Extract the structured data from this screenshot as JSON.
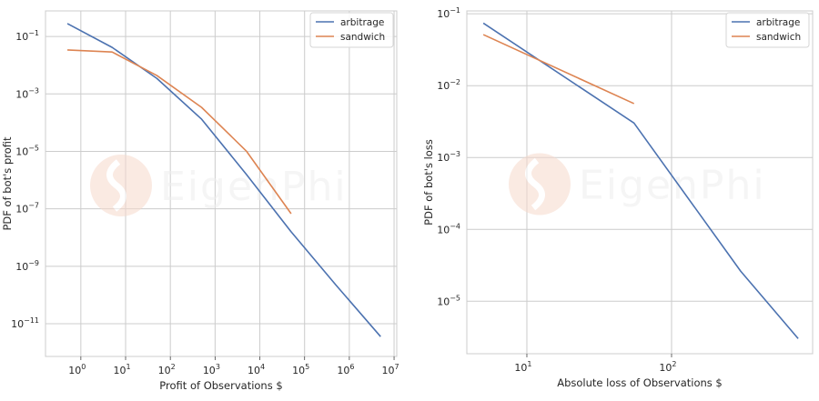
{
  "watermark": "EigenPhi",
  "colors": {
    "arbitrage": "#4c72b0",
    "sandwich": "#dd8452",
    "grid": "#cccccc",
    "watermark": "#f7d9cc"
  },
  "chart_data": [
    {
      "type": "line",
      "xscale": "log",
      "yscale": "log",
      "xlabel": "Profit of Observations $",
      "ylabel": "PDF of bot's profit",
      "xlim_log10": [
        -0.79,
        7.06
      ],
      "ylim_log10": [
        -12.14,
        -0.11
      ],
      "xticks": [
        {
          "exp": 0,
          "label": "0"
        },
        {
          "exp": 1,
          "label": "1"
        },
        {
          "exp": 2,
          "label": "2"
        },
        {
          "exp": 3,
          "label": "3"
        },
        {
          "exp": 4,
          "label": "4"
        },
        {
          "exp": 5,
          "label": "5"
        },
        {
          "exp": 6,
          "label": "6"
        },
        {
          "exp": 7,
          "label": "7"
        }
      ],
      "yticks": [
        {
          "exp": -1,
          "label": "−1"
        },
        {
          "exp": -3,
          "label": "−3"
        },
        {
          "exp": -5,
          "label": "−5"
        },
        {
          "exp": -7,
          "label": "−7"
        },
        {
          "exp": -9,
          "label": "−9"
        },
        {
          "exp": -11,
          "label": "−11"
        }
      ],
      "tick_base": "10",
      "grid": true,
      "legend": "top-right",
      "series": [
        {
          "name": "arbitrage",
          "x": [
            0.5,
            5,
            50,
            500,
            5000,
            50000,
            500000,
            5000000
          ],
          "y_log10": [
            -0.55,
            -1.38,
            -2.46,
            -3.88,
            -5.8,
            -7.8,
            -9.65,
            -11.45
          ]
        },
        {
          "name": "sandwich",
          "x": [
            0.5,
            5,
            50,
            500,
            5000,
            50000
          ],
          "y_log10": [
            -1.47,
            -1.54,
            -2.36,
            -3.47,
            -4.99,
            -7.17
          ]
        }
      ]
    },
    {
      "type": "line",
      "xscale": "log",
      "yscale": "log",
      "xlabel": "Absolute loss of Observations $",
      "ylabel": "PDF of bot's loss",
      "xlim_log10": [
        0.585,
        2.975
      ],
      "ylim_log10": [
        -5.73,
        -0.96
      ],
      "xticks": [
        {
          "exp": 1,
          "label": "1"
        },
        {
          "exp": 2,
          "label": "2"
        }
      ],
      "yticks": [
        {
          "exp": -1,
          "label": "−1"
        },
        {
          "exp": -2,
          "label": "−2"
        },
        {
          "exp": -3,
          "label": "−3"
        },
        {
          "exp": -4,
          "label": "−4"
        },
        {
          "exp": -5,
          "label": "−5"
        }
      ],
      "tick_base": "10",
      "grid": true,
      "legend": "top-right",
      "series": [
        {
          "name": "arbitrage",
          "x": [
            5,
            55,
            300,
            750
          ],
          "y_log10": [
            -1.13,
            -2.52,
            -4.58,
            -5.52
          ]
        },
        {
          "name": "sandwich",
          "x": [
            5,
            55
          ],
          "y_log10": [
            -1.29,
            -2.25
          ]
        }
      ]
    }
  ]
}
